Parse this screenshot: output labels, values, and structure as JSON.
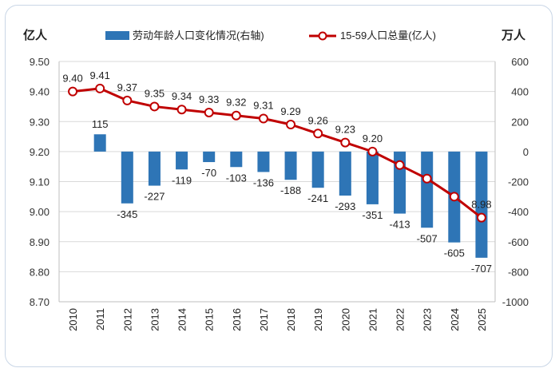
{
  "chart_data": {
    "type": "bar+line",
    "left_axis_unit": "亿人",
    "right_axis_unit": "万人",
    "categories": [
      "2010",
      "2011",
      "2012",
      "2013",
      "2014",
      "2015",
      "2016",
      "2017",
      "2018",
      "2019",
      "2020",
      "2021",
      "2022",
      "2023",
      "2024",
      "2025"
    ],
    "series": [
      {
        "name": "劳动年龄人口变化情况(右轴)",
        "type": "bar",
        "axis": "right",
        "color": "#2e75b6",
        "values": [
          null,
          115,
          -345,
          -227,
          -119,
          -70,
          -103,
          -136,
          -188,
          -241,
          -293,
          -351,
          -413,
          -507,
          -605,
          -707
        ],
        "labels": [
          "",
          "115",
          "-345",
          "-227",
          "-119",
          "-70",
          "-103",
          "-136",
          "-188",
          "-241",
          "-293",
          "-351",
          "-413",
          "-507",
          "-605",
          "-707"
        ]
      },
      {
        "name": "15-59人口总量(亿人)",
        "type": "line",
        "axis": "left",
        "color": "#c00000",
        "values": [
          9.4,
          9.41,
          9.37,
          9.35,
          9.34,
          9.33,
          9.32,
          9.31,
          9.29,
          9.26,
          9.23,
          9.2,
          9.155,
          9.11,
          9.05,
          8.98
        ],
        "labels": [
          "9.40",
          "9.41",
          "9.37",
          "9.35",
          "9.34",
          "9.33",
          "9.32",
          "9.31",
          "9.29",
          "9.26",
          "9.23",
          "9.20",
          "",
          "",
          "",
          "8.98"
        ]
      }
    ],
    "left_axis": {
      "range": [
        8.7,
        9.5
      ],
      "ticks": [
        "8.70",
        "8.80",
        "8.90",
        "9.00",
        "9.10",
        "9.20",
        "9.30",
        "9.40",
        "9.50"
      ]
    },
    "right_axis": {
      "range": [
        -1000,
        600
      ],
      "ticks": [
        "-1000",
        "-800",
        "-600",
        "-400",
        "-200",
        "0",
        "200",
        "400",
        "600"
      ]
    },
    "legend_position": "top"
  }
}
